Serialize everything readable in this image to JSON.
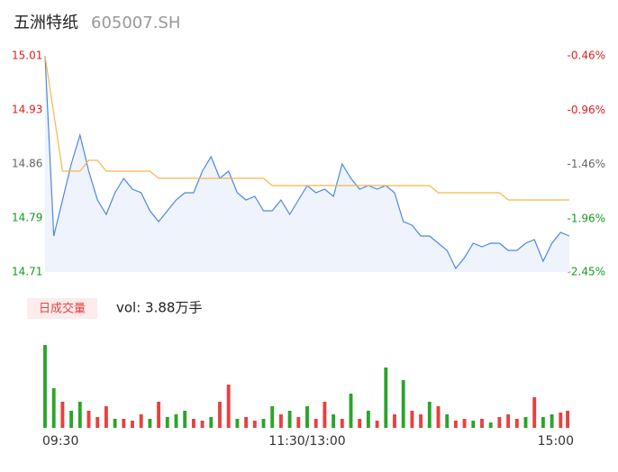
{
  "header": {
    "title": "五洲特纸",
    "code": "605007.SH"
  },
  "chart_data": {
    "type": "line",
    "x": [
      0,
      4,
      8,
      12,
      16,
      20,
      24,
      28,
      32,
      36,
      40,
      44,
      48,
      52,
      56,
      60,
      64,
      68,
      72,
      76,
      80,
      84,
      88,
      92,
      96,
      100,
      104,
      108,
      112,
      116,
      120,
      124,
      128,
      132,
      136,
      140,
      144,
      148,
      152,
      156,
      160,
      164,
      168,
      172,
      176,
      180,
      184,
      188,
      192,
      196,
      200,
      204,
      208,
      212,
      216,
      220,
      224,
      228,
      232,
      236,
      240
    ],
    "xlim": [
      0,
      240
    ],
    "xticks": [
      {
        "value": 0,
        "label": "09:30"
      },
      {
        "value": 120,
        "label": "11:30/13:00"
      },
      {
        "value": 240,
        "label": "15:00"
      }
    ],
    "series": [
      {
        "name": "price",
        "color": "#4f86e6",
        "values": [
          15.01,
          14.76,
          14.81,
          14.86,
          14.9,
          14.85,
          14.81,
          14.79,
          14.82,
          14.84,
          14.825,
          14.82,
          14.795,
          14.78,
          14.795,
          14.81,
          14.82,
          14.82,
          14.85,
          14.87,
          14.84,
          14.85,
          14.82,
          14.81,
          14.815,
          14.795,
          14.795,
          14.81,
          14.79,
          14.81,
          14.83,
          14.82,
          14.825,
          14.815,
          14.86,
          14.84,
          14.825,
          14.83,
          14.825,
          14.83,
          14.82,
          14.78,
          14.775,
          14.76,
          14.76,
          14.75,
          14.74,
          14.715,
          14.73,
          14.75,
          14.745,
          14.75,
          14.75,
          14.74,
          14.74,
          14.75,
          14.755,
          14.725,
          14.75,
          14.765,
          14.76
        ]
      },
      {
        "name": "average",
        "color": "#f5b84a",
        "values": [
          15.01,
          14.93,
          14.85,
          14.85,
          14.85,
          14.865,
          14.865,
          14.85,
          14.85,
          14.85,
          14.85,
          14.85,
          14.85,
          14.84,
          14.84,
          14.84,
          14.84,
          14.84,
          14.84,
          14.84,
          14.84,
          14.84,
          14.84,
          14.84,
          14.84,
          14.84,
          14.83,
          14.83,
          14.83,
          14.83,
          14.83,
          14.83,
          14.83,
          14.83,
          14.83,
          14.83,
          14.83,
          14.83,
          14.83,
          14.83,
          14.83,
          14.83,
          14.83,
          14.83,
          14.83,
          14.82,
          14.82,
          14.82,
          14.82,
          14.82,
          14.82,
          14.82,
          14.82,
          14.81,
          14.81,
          14.81,
          14.81,
          14.81,
          14.81,
          14.81,
          14.81
        ]
      }
    ],
    "ylim": [
      14.71,
      15.01
    ],
    "yticks": [
      15.01,
      {
        "value": 14.935,
        "label": "14.93"
      },
      14.86,
      {
        "value": 14.785,
        "label": "14.79"
      },
      14.71
    ],
    "y2lim": [
      -2.45,
      -0.46
    ],
    "y2ticks": [
      {
        "value": -0.46,
        "label": "-0.46%"
      },
      {
        "value": -0.96,
        "label": "-0.96%"
      },
      {
        "value": -1.46,
        "label": "-1.46%"
      },
      {
        "value": -1.96,
        "label": "-1.96%"
      },
      {
        "value": -2.45,
        "label": "-2.45%"
      }
    ],
    "ytick_colors": [
      "#e02020",
      "#e02020",
      "#666666",
      "#179a1f",
      "#179a1f"
    ],
    "area_color": "#eef3fc",
    "volume": {
      "label": "日成交量",
      "text": "vol: 3.88万手",
      "vlim": [
        0,
        1000
      ],
      "values": [
        920,
        440,
        290,
        190,
        290,
        190,
        120,
        240,
        100,
        100,
        80,
        150,
        100,
        290,
        120,
        150,
        190,
        100,
        80,
        120,
        290,
        480,
        100,
        120,
        80,
        100,
        240,
        150,
        190,
        120,
        240,
        100,
        290,
        150,
        100,
        380,
        100,
        190,
        80,
        670,
        150,
        530,
        190,
        150,
        290,
        240,
        150,
        80,
        100,
        80,
        100,
        60,
        120,
        150,
        100,
        120,
        340,
        120,
        150,
        170,
        190
      ],
      "colors": [
        "#2aa52a",
        "#2aa52a",
        "#e84040",
        "#2aa52a",
        "#2aa52a",
        "#e84040",
        "#e84040",
        "#e84040",
        "#2aa52a",
        "#e84040",
        "#e84040",
        "#e84040",
        "#2aa52a",
        "#e84040",
        "#2aa52a",
        "#2aa52a",
        "#2aa52a",
        "#e84040",
        "#e84040",
        "#2aa52a",
        "#e84040",
        "#e84040",
        "#2aa52a",
        "#e84040",
        "#e84040",
        "#2aa52a",
        "#2aa52a",
        "#e84040",
        "#2aa52a",
        "#e84040",
        "#2aa52a",
        "#e84040",
        "#e84040",
        "#2aa52a",
        "#e84040",
        "#2aa52a",
        "#e84040",
        "#2aa52a",
        "#e84040",
        "#2aa52a",
        "#e84040",
        "#2aa52a",
        "#e84040",
        "#e84040",
        "#2aa52a",
        "#e84040",
        "#2aa52a",
        "#e84040",
        "#e84040",
        "#2aa52a",
        "#e84040",
        "#2aa52a",
        "#e84040",
        "#e84040",
        "#e84040",
        "#2aa52a",
        "#e84040",
        "#2aa52a",
        "#2aa52a",
        "#e84040",
        "#e84040"
      ]
    }
  }
}
